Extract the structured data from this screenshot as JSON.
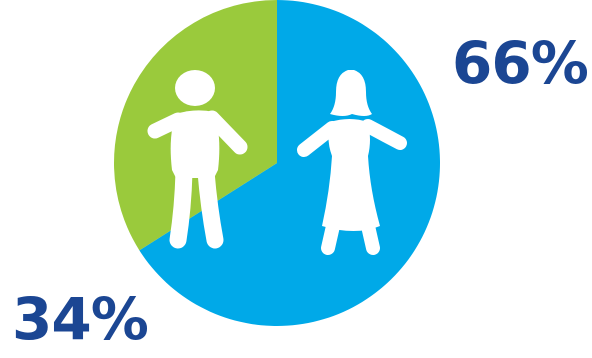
{
  "chart_data": {
    "type": "pie",
    "title": "",
    "slices": [
      {
        "label": "34%",
        "value": 34,
        "color": "#9ACA3C",
        "icon": "male-figure-icon"
      },
      {
        "label": "66%",
        "value": 66,
        "color": "#00A9E8",
        "icon": "female-figure-icon"
      }
    ],
    "label_color": "#1B4693",
    "legend": "none"
  }
}
